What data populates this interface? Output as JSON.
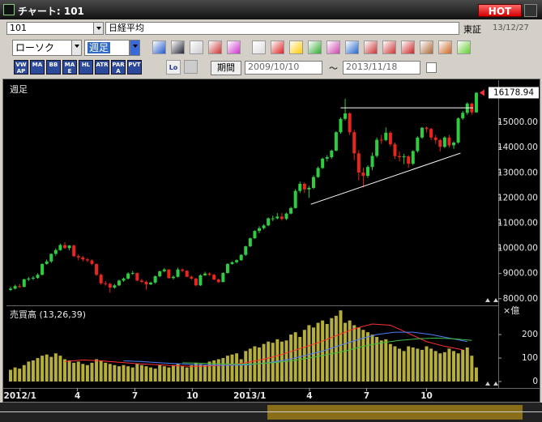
{
  "window": {
    "title": "チャート: 101",
    "hot": "HOT"
  },
  "toolbar": {
    "code": "101",
    "name": "日経平均",
    "market": "東証",
    "date": "13/12/27",
    "chart_style": "ローソク",
    "period": "週足",
    "indicators": [
      "VWAP",
      "MA",
      "BB",
      "MAE",
      "HL",
      "ATR",
      "PARA",
      "PVT"
    ],
    "log": "Log",
    "range_button": "期間",
    "from": "2009/10/10",
    "tilde": "〜",
    "to": "2013/11/18"
  },
  "chart_data": [
    {
      "type": "candlestick",
      "title": "週足",
      "up_color": "#2ecc40",
      "down_color": "#e8261e",
      "xlim": [
        -0.9,
        107.85
      ],
      "ylim": [
        7800,
        16580
      ],
      "yticks": [
        {
          "value": 8000,
          "label": "8000.00"
        },
        {
          "value": 9000,
          "label": "9000.00"
        },
        {
          "value": 10000,
          "label": "10000.00"
        },
        {
          "value": 11000,
          "label": "11000.00"
        },
        {
          "value": 12000,
          "label": "12000.00"
        },
        {
          "value": 13000,
          "label": "13000.00"
        },
        {
          "value": 14000,
          "label": "14000.00"
        },
        {
          "value": 15000,
          "label": "15000.00"
        }
      ],
      "trend_lines": [
        {
          "color": "#ffffff",
          "x": [
            73,
            102.3
          ],
          "y": [
            15580,
            15580
          ]
        },
        {
          "color": "#ffffff",
          "x": [
            66.4,
            99.5
          ],
          "y": [
            11750,
            13780
          ]
        }
      ],
      "candles": [
        [
          8350,
          8480,
          8300,
          8400
        ],
        [
          8400,
          8560,
          8370,
          8500
        ],
        [
          8500,
          8580,
          8420,
          8470
        ],
        [
          8470,
          8800,
          8450,
          8770
        ],
        [
          8770,
          8870,
          8700,
          8800
        ],
        [
          8800,
          8900,
          8740,
          8830
        ],
        [
          8830,
          9010,
          8790,
          8950
        ],
        [
          8950,
          9400,
          8930,
          9380
        ],
        [
          9380,
          9560,
          9350,
          9480
        ],
        [
          9480,
          9800,
          9420,
          9780
        ],
        [
          9780,
          10000,
          9700,
          9930
        ],
        [
          9930,
          10190,
          9900,
          10130
        ],
        [
          10130,
          10250,
          9980,
          10010
        ],
        [
          10010,
          10130,
          9920,
          10110
        ],
        [
          10110,
          10150,
          9650,
          9690
        ],
        [
          9690,
          9760,
          9530,
          9640
        ],
        [
          9640,
          9700,
          9480,
          9560
        ],
        [
          9560,
          9620,
          9450,
          9520
        ],
        [
          9520,
          9560,
          9340,
          9380
        ],
        [
          9380,
          9400,
          8900,
          8950
        ],
        [
          8950,
          9000,
          8560,
          8610
        ],
        [
          8610,
          8700,
          8520,
          8590
        ],
        [
          8590,
          8640,
          8240,
          8440
        ],
        [
          8440,
          8580,
          8400,
          8530
        ],
        [
          8530,
          8760,
          8500,
          8720
        ],
        [
          8720,
          8840,
          8670,
          8800
        ],
        [
          8800,
          9050,
          8760,
          9000
        ],
        [
          9000,
          9100,
          8950,
          9020
        ],
        [
          9020,
          9040,
          8700,
          8720
        ],
        [
          8720,
          8790,
          8620,
          8670
        ],
        [
          8670,
          8720,
          8360,
          8570
        ],
        [
          8570,
          8680,
          8540,
          8640
        ],
        [
          8640,
          8920,
          8600,
          8890
        ],
        [
          8890,
          9110,
          8850,
          9090
        ],
        [
          9090,
          9220,
          9040,
          9160
        ],
        [
          9160,
          9170,
          8800,
          8820
        ],
        [
          8820,
          8920,
          8760,
          8870
        ],
        [
          8870,
          9230,
          8840,
          9160
        ],
        [
          9160,
          9200,
          9050,
          9110
        ],
        [
          9110,
          9130,
          8850,
          8870
        ],
        [
          8870,
          8920,
          8750,
          8800
        ],
        [
          8800,
          8830,
          8500,
          8530
        ],
        [
          8530,
          8970,
          8510,
          8930
        ],
        [
          8930,
          9070,
          8900,
          9000
        ],
        [
          9000,
          9040,
          8900,
          8950
        ],
        [
          8950,
          8990,
          8740,
          8760
        ],
        [
          8760,
          8800,
          8620,
          8660
        ],
        [
          8660,
          9050,
          8650,
          9020
        ],
        [
          9020,
          9410,
          9000,
          9380
        ],
        [
          9380,
          9480,
          9350,
          9450
        ],
        [
          9450,
          9560,
          9400,
          9530
        ],
        [
          9530,
          9770,
          9500,
          9740
        ],
        [
          9740,
          10100,
          9700,
          10080
        ],
        [
          10080,
          10430,
          10050,
          10400
        ],
        [
          10400,
          10720,
          10380,
          10690
        ],
        [
          10690,
          10880,
          10600,
          10800
        ],
        [
          10800,
          10960,
          10750,
          10910
        ],
        [
          10910,
          11230,
          10880,
          11190
        ],
        [
          11190,
          11300,
          11080,
          11190
        ],
        [
          11190,
          11400,
          11150,
          11260
        ],
        [
          11260,
          11410,
          11100,
          11170
        ],
        [
          11170,
          11420,
          11120,
          11380
        ],
        [
          11380,
          11650,
          11350,
          11600
        ],
        [
          11600,
          12350,
          11580,
          12280
        ],
        [
          12280,
          12650,
          12200,
          12560
        ],
        [
          12560,
          12620,
          12200,
          12340
        ],
        [
          12340,
          12480,
          12000,
          12400
        ],
        [
          12400,
          12900,
          12350,
          12830
        ],
        [
          12830,
          13250,
          12800,
          13190
        ],
        [
          13190,
          13600,
          13150,
          13560
        ],
        [
          13560,
          13700,
          13450,
          13620
        ],
        [
          13620,
          13920,
          13550,
          13880
        ],
        [
          13880,
          14650,
          13850,
          14610
        ],
        [
          14610,
          15200,
          14550,
          15140
        ],
        [
          15140,
          15940,
          15080,
          15360
        ],
        [
          15360,
          15400,
          14500,
          14610
        ],
        [
          14610,
          14700,
          13500,
          13770
        ],
        [
          13770,
          13900,
          12700,
          13010
        ],
        [
          13010,
          13200,
          12420,
          12880
        ],
        [
          12880,
          13300,
          12800,
          13230
        ],
        [
          13230,
          13800,
          13100,
          13670
        ],
        [
          13670,
          14400,
          13600,
          14310
        ],
        [
          14310,
          14500,
          14150,
          14300
        ],
        [
          14300,
          14800,
          14250,
          14590
        ],
        [
          14590,
          14650,
          14050,
          14130
        ],
        [
          14130,
          14200,
          13550,
          13660
        ],
        [
          13660,
          13850,
          13450,
          13620
        ],
        [
          13620,
          13750,
          13350,
          13650
        ],
        [
          13650,
          13700,
          13200,
          13360
        ],
        [
          13360,
          13900,
          13300,
          13860
        ],
        [
          13860,
          14450,
          13800,
          14400
        ],
        [
          14400,
          14820,
          14350,
          14790
        ],
        [
          14790,
          14830,
          14600,
          14740
        ],
        [
          14740,
          14780,
          14300,
          14400
        ],
        [
          14400,
          14500,
          14150,
          14300
        ],
        [
          14300,
          14350,
          13850,
          14030
        ],
        [
          14030,
          14450,
          13980,
          14400
        ],
        [
          14400,
          14500,
          14000,
          14090
        ],
        [
          14090,
          14250,
          13950,
          14200
        ],
        [
          14200,
          15200,
          14150,
          15160
        ],
        [
          15160,
          15450,
          15100,
          15380
        ],
        [
          15380,
          15800,
          15300,
          15750
        ],
        [
          15750,
          15780,
          15300,
          15400
        ],
        [
          15400,
          16200,
          15380,
          16178.94
        ]
      ]
    },
    {
      "type": "bar",
      "title": "売買高 (13,26,39)",
      "unit": "×億",
      "color": "#b5ad3c",
      "xlim": [
        -0.9,
        107.85
      ],
      "ylim": [
        -24,
        314
      ],
      "yticks": [
        0,
        100,
        200
      ],
      "xticks": [
        {
          "value": 2.1,
          "label": "2012/1"
        },
        {
          "value": 14.8,
          "label": "4"
        },
        {
          "value": 27.5,
          "label": "7"
        },
        {
          "value": 40.2,
          "label": "10"
        },
        {
          "value": 52.9,
          "label": "2013/1"
        },
        {
          "value": 66.1,
          "label": "4"
        },
        {
          "value": 78.75,
          "label": "7"
        },
        {
          "value": 92,
          "label": "10"
        }
      ],
      "values": [
        50,
        60,
        55,
        70,
        85,
        90,
        100,
        110,
        115,
        105,
        120,
        110,
        95,
        90,
        80,
        85,
        75,
        70,
        80,
        95,
        90,
        80,
        75,
        70,
        65,
        70,
        65,
        60,
        75,
        70,
        65,
        60,
        55,
        70,
        65,
        60,
        70,
        75,
        65,
        60,
        70,
        80,
        75,
        70,
        85,
        90,
        95,
        100,
        110,
        115,
        120,
        95,
        130,
        140,
        150,
        145,
        160,
        170,
        165,
        180,
        170,
        175,
        200,
        210,
        190,
        220,
        240,
        230,
        250,
        260,
        245,
        270,
        280,
        303,
        250,
        260,
        240,
        230,
        220,
        210,
        200,
        190,
        175,
        180,
        160,
        150,
        140,
        130,
        150,
        145,
        140,
        135,
        150,
        140,
        130,
        120,
        125,
        140,
        130,
        120,
        135,
        145,
        110,
        60
      ],
      "series": [
        {
          "color": "#ff3030",
          "x": [
            12,
            16,
            20,
            24,
            28,
            32,
            36,
            40,
            44,
            48,
            52,
            56,
            60,
            64,
            68,
            72,
            76,
            80,
            84,
            88,
            92,
            96,
            100
          ],
          "values": [
            85,
            92,
            88,
            82,
            76,
            72,
            68,
            65,
            66,
            70,
            80,
            95,
            115,
            140,
            165,
            195,
            225,
            245,
            240,
            205,
            170,
            150,
            135
          ]
        },
        {
          "color": "#4a7dff",
          "x": [
            25,
            29,
            33,
            37,
            41,
            45,
            49,
            53,
            57,
            61,
            65,
            69,
            73,
            77,
            81,
            85,
            89,
            93,
            97,
            101
          ],
          "values": [
            88,
            85,
            80,
            76,
            72,
            70,
            69,
            72,
            80,
            92,
            110,
            130,
            155,
            180,
            200,
            210,
            210,
            200,
            185,
            170
          ]
        },
        {
          "color": "#3fbf3f",
          "x": [
            38,
            42,
            46,
            50,
            54,
            58,
            62,
            66,
            70,
            74,
            78,
            82,
            86,
            90,
            94,
            98,
            102
          ],
          "values": [
            80,
            78,
            76,
            74,
            75,
            80,
            88,
            100,
            115,
            130,
            150,
            165,
            175,
            182,
            185,
            182,
            175
          ]
        }
      ]
    }
  ]
}
